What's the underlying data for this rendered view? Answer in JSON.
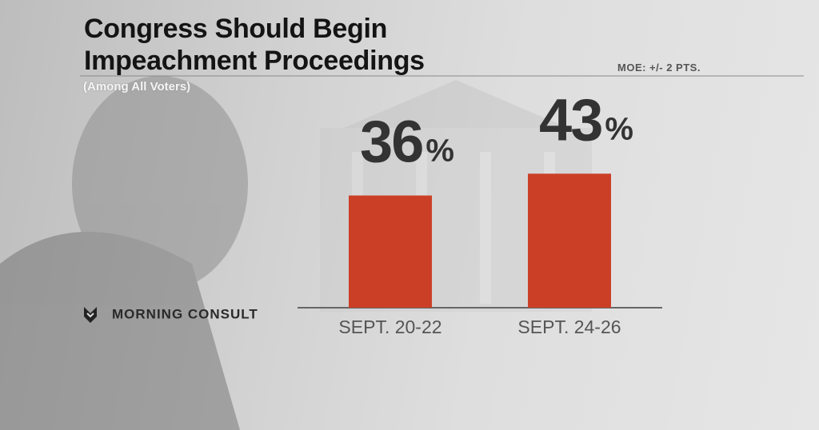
{
  "chart_data": {
    "type": "bar",
    "title": "Congress Should Begin Impeachment Proceedings",
    "subtitle": "(Among All Voters)",
    "annotation": "MOE: +/- 2 PTS.",
    "source": "MORNING CONSULT",
    "categories": [
      "SEPT. 20-22",
      "SEPT. 24-26"
    ],
    "values": [
      36,
      43
    ],
    "value_labels": [
      "36%",
      "43%"
    ],
    "color": "#cc3f27"
  }
}
